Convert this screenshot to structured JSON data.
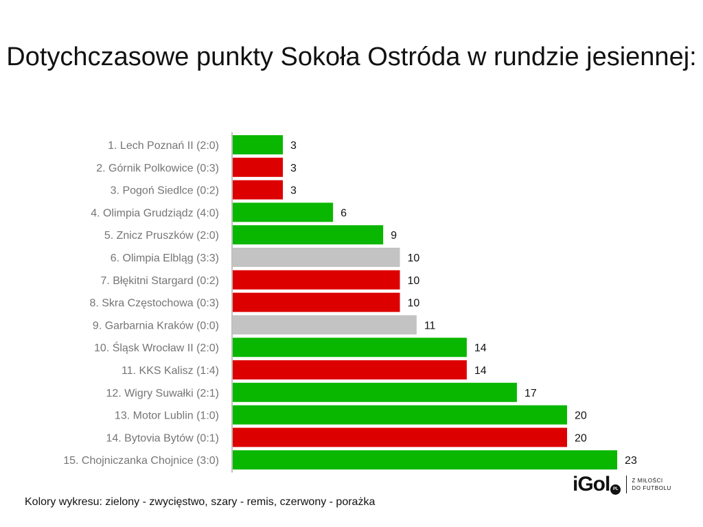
{
  "title": "Dotychczasowe punkty Sokoła Ostróda w rundzie jesiennej:",
  "footer_note": "Kolory wykresu: zielony - zwycięstwo, szary - remis, czerwony - porażka",
  "logo": {
    "text": "iGol",
    "badge": "PL",
    "tagline_line1": "Z MIŁOŚCI",
    "tagline_line2": "DO FUTBOLU"
  },
  "colors": {
    "win": "#0ab700",
    "draw": "#c3c3c3",
    "loss": "#dd0000",
    "axis": "#c0c0c0",
    "label": "#757575",
    "value": "#111111"
  },
  "chart_data": {
    "type": "bar",
    "orientation": "horizontal",
    "title": "Dotychczasowe punkty Sokoła Ostróda w rundzie jesiennej:",
    "xlim": [
      0,
      23
    ],
    "grid": false,
    "categories": [
      "1. Lech Poznań II (2:0)",
      "2. Górnik Polkowice  (0:3)",
      "3. Pogoń Siedlce (0:2)",
      "4. Olimpia Grudziądz (4:0)",
      "5. Znicz Pruszków (2:0)",
      "6. Olimpia Elbląg (3:3)",
      "7. Błękitni Stargard (0:2)",
      "8. Skra Częstochowa (0:3)",
      "9. Garbarnia Kraków (0:0)",
      "10. Śląsk Wrocław II (2:0)",
      "11. KKS Kalisz (1:4)",
      "12. Wigry Suwałki (2:1)",
      "13. Motor Lublin (1:0)",
      "14. Bytovia Bytów (0:1)",
      "15. Chojniczanka Chojnice (3:0)"
    ],
    "values": [
      3,
      3,
      3,
      6,
      9,
      10,
      10,
      10,
      11,
      14,
      14,
      17,
      20,
      20,
      23
    ],
    "results": [
      "win",
      "loss",
      "loss",
      "win",
      "win",
      "draw",
      "loss",
      "loss",
      "draw",
      "win",
      "loss",
      "win",
      "win",
      "loss",
      "win"
    ]
  }
}
